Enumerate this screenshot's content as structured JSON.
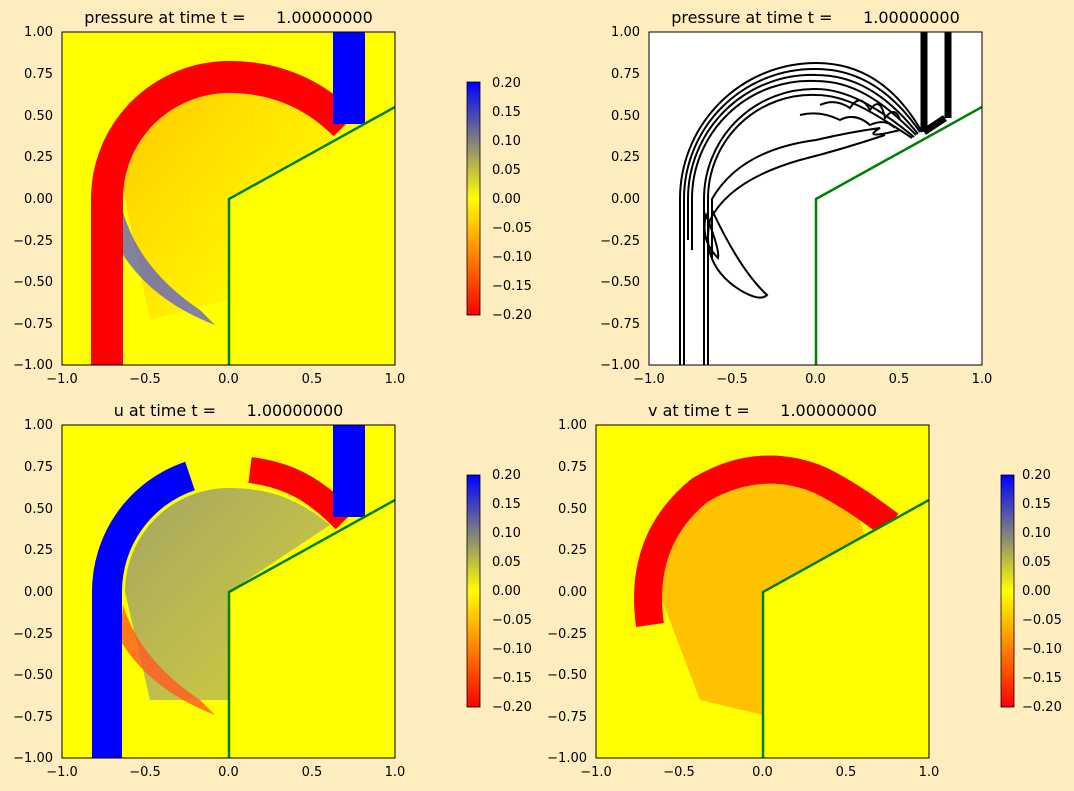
{
  "colors": {
    "background": "#ffedbf",
    "boundary": "#008000",
    "cmap": [
      "#ff0000",
      "#ffff00",
      "#0000ff"
    ],
    "contour": "#000000",
    "field_neutral": "#ffff00"
  },
  "panels": [
    {
      "title": "pressure at time t =      1.00000000"
    },
    {
      "title": "pressure at time t =      1.00000000"
    },
    {
      "title": "u at time t =      1.00000000"
    },
    {
      "title": "v at time t =      1.00000000"
    }
  ],
  "chart_data": [
    {
      "type": "heatmap",
      "title": "pressure at time t =      1.00000000",
      "field": "pressure",
      "xlim": [
        -1.0,
        1.0
      ],
      "ylim": [
        -1.0,
        1.0
      ],
      "xticks": [
        "−1.0",
        "−0.5",
        "0.0",
        "0.5",
        "1.0"
      ],
      "yticks": [
        "−1.00",
        "−0.75",
        "−0.50",
        "−0.25",
        "0.00",
        "0.25",
        "0.50",
        "0.75",
        "1.00"
      ],
      "colorbar": {
        "range": [
          -0.2,
          0.2
        ],
        "ticks": [
          "−0.20",
          "−0.15",
          "−0.10",
          "−0.05",
          "0.00",
          "0.05",
          "0.10",
          "0.15",
          "0.20"
        ]
      },
      "boundary": [
        [
          0.0,
          -1.0
        ],
        [
          0.0,
          0.0
        ],
        [
          1.0,
          0.55
        ]
      ]
    },
    {
      "type": "contour",
      "title": "pressure at time t =      1.00000000",
      "field": "pressure",
      "xlim": [
        -1.0,
        1.0
      ],
      "ylim": [
        -1.0,
        1.0
      ],
      "xticks": [
        "−1.0",
        "−0.5",
        "0.0",
        "0.5",
        "1.0"
      ],
      "yticks": [
        "−1.00",
        "−0.75",
        "−0.50",
        "−0.25",
        "0.00",
        "0.25",
        "0.50",
        "0.75",
        "1.00"
      ],
      "boundary": [
        [
          0.0,
          -1.0
        ],
        [
          0.0,
          0.0
        ],
        [
          1.0,
          0.55
        ]
      ]
    },
    {
      "type": "heatmap",
      "title": "u at time t =      1.00000000",
      "field": "u",
      "xlim": [
        -1.0,
        1.0
      ],
      "ylim": [
        -1.0,
        1.0
      ],
      "xticks": [
        "−1.0",
        "−0.5",
        "0.0",
        "0.5",
        "1.0"
      ],
      "yticks": [
        "−1.00",
        "−0.75",
        "−0.50",
        "−0.25",
        "0.00",
        "0.25",
        "0.50",
        "0.75",
        "1.00"
      ],
      "colorbar": {
        "range": [
          -0.2,
          0.2
        ],
        "ticks": [
          "−0.20",
          "−0.15",
          "−0.10",
          "−0.05",
          "0.00",
          "0.05",
          "0.10",
          "0.15",
          "0.20"
        ]
      },
      "boundary": [
        [
          0.0,
          -1.0
        ],
        [
          0.0,
          0.0
        ],
        [
          1.0,
          0.55
        ]
      ]
    },
    {
      "type": "heatmap",
      "title": "v at time t =      1.00000000",
      "field": "v",
      "xlim": [
        -1.0,
        1.0
      ],
      "ylim": [
        -1.0,
        1.0
      ],
      "xticks": [
        "−1.0",
        "−0.5",
        "0.0",
        "0.5",
        "1.0"
      ],
      "yticks": [
        "−1.00",
        "−0.75",
        "−0.50",
        "−0.25",
        "0.00",
        "0.25",
        "0.50",
        "0.75",
        "1.00"
      ],
      "colorbar": {
        "range": [
          -0.2,
          0.2
        ],
        "ticks": [
          "−0.20",
          "−0.15",
          "−0.10",
          "−0.05",
          "0.00",
          "0.05",
          "0.10",
          "0.15",
          "0.20"
        ]
      },
      "boundary": [
        [
          0.0,
          -1.0
        ],
        [
          0.0,
          0.0
        ],
        [
          1.0,
          0.55
        ]
      ]
    }
  ]
}
